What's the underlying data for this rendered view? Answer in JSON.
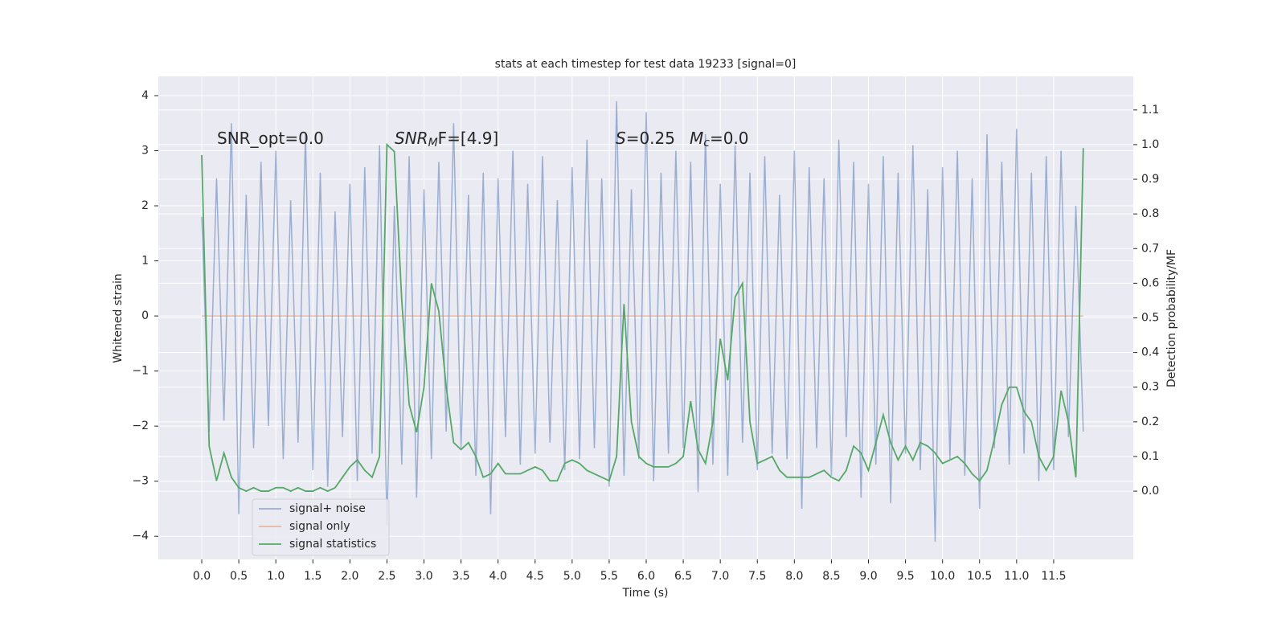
{
  "chart_data": {
    "type": "line",
    "title": "stats at each timestep for test data 19233 [signal=0]",
    "x_label": "Time (s)",
    "y_label": "Whitened strain",
    "y2_label": "Detection probability/MF",
    "grid": true,
    "legend": "lower left",
    "xlim": [
      -0.586,
      12.575
    ],
    "ylim": [
      -4.42,
      4.35
    ],
    "y2lim": [
      -0.197,
      1.197
    ],
    "xticks": [
      {
        "value": 0,
        "label": "0.0"
      },
      0.5,
      {
        "value": 1,
        "label": "1.0"
      },
      1.5,
      {
        "value": 2,
        "label": "2.0"
      },
      2.5,
      {
        "value": 3,
        "label": "3.0"
      },
      3.5,
      {
        "value": 4,
        "label": "4.0"
      },
      4.5,
      {
        "value": 5,
        "label": "5.0"
      },
      5.5,
      {
        "value": 6,
        "label": "6.0"
      },
      6.5,
      {
        "value": 7,
        "label": "7.0"
      },
      7.5,
      {
        "value": 8,
        "label": "8.0"
      },
      8.5,
      {
        "value": 9,
        "label": "9.0"
      },
      9.5,
      {
        "value": 10,
        "label": "10.0"
      },
      10.5,
      {
        "value": 11,
        "label": "11.0"
      },
      11.5
    ],
    "yticks": [
      {
        "value": -4,
        "label": "−4"
      },
      {
        "value": -3,
        "label": "−3"
      },
      {
        "value": -2,
        "label": "−2"
      },
      {
        "value": -1,
        "label": "−1"
      },
      0,
      1,
      2,
      3,
      4
    ],
    "y2ticks": [
      {
        "value": 0,
        "label": "0.0"
      },
      0.1,
      0.2,
      0.3,
      0.4,
      0.5,
      0.6,
      0.7,
      0.8,
      0.9,
      {
        "value": 1,
        "label": "1.0"
      },
      1.1
    ],
    "x": [
      0.0,
      0.1,
      0.2,
      0.3,
      0.4,
      0.5,
      0.6,
      0.7,
      0.8,
      0.9,
      1.0,
      1.1,
      1.2,
      1.3,
      1.4,
      1.5,
      1.6,
      1.7,
      1.8,
      1.9,
      2.0,
      2.1,
      2.2,
      2.3,
      2.4,
      2.5,
      2.6,
      2.7,
      2.8,
      2.9,
      3.0,
      3.1,
      3.2,
      3.3,
      3.4,
      3.5,
      3.6,
      3.7,
      3.8,
      3.9,
      4.0,
      4.1,
      4.2,
      4.3,
      4.4,
      4.5,
      4.6,
      4.7,
      4.8,
      4.9,
      5.0,
      5.1,
      5.2,
      5.3,
      5.4,
      5.5,
      5.6,
      5.7,
      5.8,
      5.9,
      6.0,
      6.1,
      6.2,
      6.3,
      6.4,
      6.5,
      6.6,
      6.7,
      6.8,
      6.9,
      7.0,
      7.1,
      7.2,
      7.3,
      7.4,
      7.5,
      7.6,
      7.7,
      7.8,
      7.9,
      8.0,
      8.1,
      8.2,
      8.3,
      8.4,
      8.5,
      8.6,
      8.7,
      8.8,
      8.9,
      9.0,
      9.1,
      9.2,
      9.3,
      9.4,
      9.5,
      9.6,
      9.7,
      9.8,
      9.9,
      10.0,
      10.1,
      10.2,
      10.3,
      10.4,
      10.5,
      10.6,
      10.7,
      10.8,
      10.9,
      11.0,
      11.1,
      11.2,
      11.3,
      11.4,
      11.5,
      11.6,
      11.7,
      11.8,
      11.9
    ],
    "series": [
      {
        "name": "signal+ noise",
        "color": "#4c72b0",
        "values": [
          1.8,
          -2.1,
          2.5,
          -1.9,
          3.5,
          -3.6,
          2.2,
          -2.4,
          2.8,
          -2.0,
          3.0,
          -2.6,
          2.1,
          -2.3,
          3.3,
          -2.8,
          2.6,
          -3.1,
          1.9,
          -2.2,
          2.4,
          -3.0,
          2.7,
          -2.5,
          3.1,
          -3.8,
          2.0,
          -2.7,
          2.9,
          -3.3,
          2.3,
          -2.6,
          2.8,
          -2.1,
          3.5,
          -2.4,
          2.2,
          -2.9,
          2.6,
          -3.6,
          2.5,
          -2.2,
          3.0,
          -2.7,
          2.4,
          -2.5,
          2.9,
          -2.3,
          2.1,
          -2.8,
          2.7,
          -2.6,
          3.2,
          -2.4,
          2.5,
          -3.1,
          3.9,
          -2.9,
          2.3,
          -2.6,
          3.7,
          -3.0,
          2.6,
          -2.5,
          3.0,
          -2.4,
          2.8,
          -3.2,
          3.3,
          -2.7,
          2.4,
          -2.9,
          3.1,
          -2.3,
          2.6,
          -2.8,
          2.9,
          -2.5,
          2.2,
          -2.6,
          3.0,
          -3.5,
          2.7,
          -2.4,
          2.5,
          -2.9,
          3.2,
          -2.2,
          2.8,
          -3.3,
          2.4,
          -2.7,
          2.9,
          -3.4,
          2.6,
          -2.5,
          3.1,
          -2.8,
          2.3,
          -4.1,
          2.7,
          -2.6,
          3.0,
          -2.9,
          2.5,
          -3.5,
          3.3,
          -2.4,
          2.8,
          -2.7,
          3.4,
          -2.5,
          2.6,
          -3.0,
          2.9,
          -2.8,
          3.0,
          -2.2,
          2.0,
          -2.1
        ]
      },
      {
        "name": "signal only",
        "color": "#dd8452",
        "values": [
          0,
          0,
          0,
          0,
          0,
          0,
          0,
          0,
          0,
          0,
          0,
          0,
          0,
          0,
          0,
          0,
          0,
          0,
          0,
          0,
          0,
          0,
          0,
          0,
          0,
          0,
          0,
          0,
          0,
          0,
          0,
          0,
          0,
          0,
          0,
          0,
          0,
          0,
          0,
          0,
          0,
          0,
          0,
          0,
          0,
          0,
          0,
          0,
          0,
          0,
          0,
          0,
          0,
          0,
          0,
          0,
          0,
          0,
          0,
          0,
          0,
          0,
          0,
          0,
          0,
          0,
          0,
          0,
          0,
          0,
          0,
          0,
          0,
          0,
          0,
          0,
          0,
          0,
          0,
          0,
          0,
          0,
          0,
          0,
          0,
          0,
          0,
          0,
          0,
          0,
          0,
          0,
          0,
          0,
          0,
          0,
          0,
          0,
          0,
          0,
          0,
          0,
          0,
          0,
          0,
          0,
          0,
          0,
          0,
          0,
          0,
          0,
          0,
          0,
          0,
          0,
          0,
          0,
          0,
          0
        ]
      },
      {
        "name": "signal statistics",
        "color": "#55a868",
        "axis": "y2",
        "values": [
          0.97,
          0.13,
          0.03,
          0.11,
          0.04,
          0.01,
          0.0,
          0.01,
          0.0,
          0.0,
          0.01,
          0.01,
          0.0,
          0.01,
          0.0,
          0.0,
          0.01,
          0.0,
          0.01,
          0.04,
          0.07,
          0.09,
          0.06,
          0.04,
          0.1,
          1.0,
          0.98,
          0.55,
          0.25,
          0.17,
          0.3,
          0.6,
          0.52,
          0.3,
          0.14,
          0.12,
          0.14,
          0.1,
          0.04,
          0.05,
          0.08,
          0.05,
          0.05,
          0.05,
          0.06,
          0.07,
          0.06,
          0.03,
          0.03,
          0.08,
          0.09,
          0.08,
          0.06,
          0.05,
          0.04,
          0.03,
          0.1,
          0.54,
          0.2,
          0.1,
          0.08,
          0.07,
          0.07,
          0.07,
          0.08,
          0.1,
          0.26,
          0.12,
          0.08,
          0.2,
          0.44,
          0.32,
          0.56,
          0.6,
          0.2,
          0.08,
          0.09,
          0.1,
          0.06,
          0.04,
          0.04,
          0.04,
          0.04,
          0.05,
          0.06,
          0.04,
          0.03,
          0.06,
          0.13,
          0.11,
          0.06,
          0.14,
          0.22,
          0.14,
          0.09,
          0.13,
          0.09,
          0.14,
          0.13,
          0.11,
          0.08,
          0.09,
          0.1,
          0.08,
          0.05,
          0.03,
          0.06,
          0.15,
          0.25,
          0.3,
          0.3,
          0.23,
          0.2,
          0.1,
          0.06,
          0.1,
          0.29,
          0.2,
          0.04,
          0.99
        ]
      }
    ],
    "annotations": [
      {
        "segments": [
          {
            "text": "SNR_opt=0.0"
          }
        ]
      },
      {
        "segments": [
          {
            "text": "SNR",
            "style": "italic"
          },
          {
            "text": "M",
            "style": "sub"
          },
          {
            "text": "F=[4.9]"
          }
        ]
      },
      {
        "segments": [
          {
            "text": "S",
            "style": "italic"
          },
          {
            "text": "=0.25"
          }
        ]
      },
      {
        "segments": [
          {
            "text": "M",
            "style": "italic"
          },
          {
            "text": "c",
            "style": "sub"
          },
          {
            "text": "=0.0"
          }
        ]
      }
    ]
  }
}
